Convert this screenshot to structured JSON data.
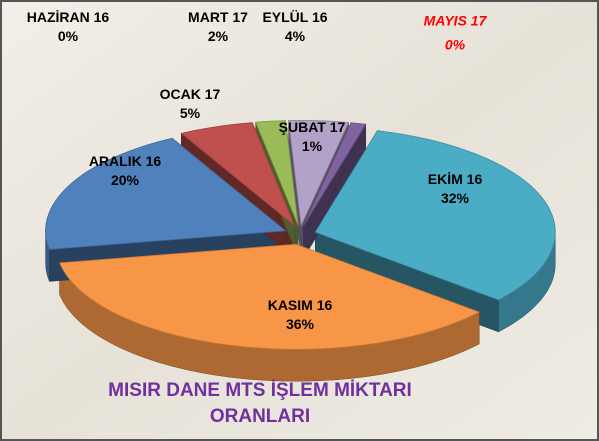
{
  "chart_data": {
    "type": "pie3d",
    "title": "MISIR DANE MTS İŞLEM MİKTARI ORANLARI",
    "categories": [
      "EKİM 16",
      "KASIM 16",
      "ARALIK 16",
      "OCAK 17",
      "MART 17",
      "HAZİRAN 16",
      "EYLÜL 16",
      "ŞUBAT 17",
      "MAYIS 17"
    ],
    "values": [
      32,
      36,
      20,
      5,
      2,
      0,
      4,
      1,
      0
    ],
    "value_labels": [
      "32%",
      "36%",
      "20%",
      "5%",
      "2%",
      "0%",
      "4%",
      "1%",
      "0%"
    ],
    "colors": [
      "#4bacc6",
      "#f79646",
      "#4f81bd",
      "#c0504d",
      "#9bbb59",
      "#4f6228",
      "#b3a2c7",
      "#8064a2",
      "#c4a77a"
    ],
    "label_colors": [
      "#000000",
      "#000000",
      "#000000",
      "#000000",
      "#000000",
      "#000000",
      "#000000",
      "#000000",
      "#ff0000"
    ]
  }
}
